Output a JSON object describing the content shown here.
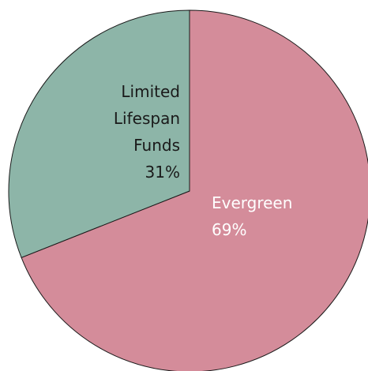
{
  "chart_data": {
    "type": "pie",
    "categories": [
      "Evergreen",
      "Limited Lifespan Funds"
    ],
    "values": [
      69,
      31
    ],
    "value_labels": [
      "69%",
      "31%"
    ],
    "colors": [
      "#d48c9a",
      "#8db5a8"
    ]
  }
}
